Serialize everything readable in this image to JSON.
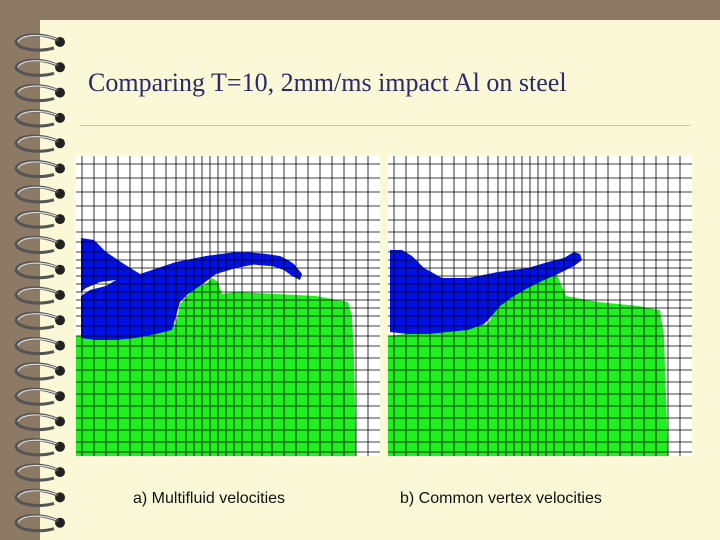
{
  "slide": {
    "title": "Comparing T=10, 2mm/ms impact Al on steel"
  },
  "panels": [
    {
      "caption": "a) Multifluid velocities"
    },
    {
      "caption": "b) Common vertex velocities"
    }
  ],
  "colors": {
    "page": "#fbf8d8",
    "border": "#8c7a64",
    "aluminum": "#0010e8",
    "steel": "#20f020",
    "grid": "#000000",
    "title": "#2a2a6a"
  },
  "icons": {
    "binding": "spiral-binding-icon"
  }
}
